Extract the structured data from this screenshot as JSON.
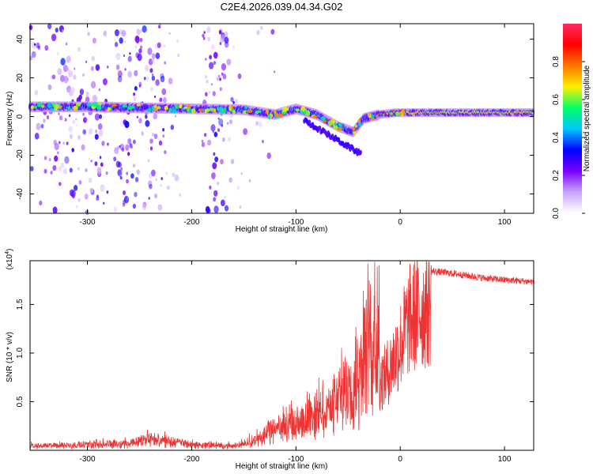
{
  "figure_title": "C2E4.2026.039.04.34.G02",
  "chart_data": [
    {
      "type": "heatmap",
      "name": "spectrogram",
      "xlabel": "Height of straight line (km)",
      "ylabel": "Frequency (Hz)",
      "xlim": [
        -355,
        128
      ],
      "ylim": [
        -50,
        48
      ],
      "xticks": [
        -300,
        -200,
        -100,
        0,
        100
      ],
      "xtick_labels": [
        "-300",
        "-200",
        "-100",
        "0",
        "100"
      ],
      "yticks": [
        -40,
        -20,
        0,
        20,
        40
      ],
      "ytick_labels": [
        "-40",
        "-20",
        "0",
        "20",
        "40"
      ],
      "ridge": {
        "x": [
          -355,
          -300,
          -250,
          -200,
          -150,
          -120,
          -100,
          -80,
          -60,
          -45,
          -35,
          -20,
          -5,
          0,
          20,
          50,
          128
        ],
        "y": [
          5,
          5,
          4.5,
          4,
          3.5,
          1,
          4,
          1,
          -5,
          -8,
          -1,
          1,
          2,
          2,
          2,
          2,
          2
        ]
      },
      "colorbar": {
        "label": "Normalized spectral amplitude",
        "range": [
          0,
          1
        ],
        "ticks": [
          0.0,
          0.2,
          0.4,
          0.6,
          0.8
        ],
        "tick_labels": [
          "0.0",
          "0.2",
          "0.4",
          "0.6",
          "0.8"
        ],
        "colors": [
          "#ffffff",
          "#c9a6ff",
          "#7a00ff",
          "#0000ff",
          "#00c8ff",
          "#00ff66",
          "#ffee00",
          "#ff7700",
          "#ff0000",
          "#ff2a60"
        ]
      }
    },
    {
      "type": "line",
      "name": "snr",
      "xlabel": "Height of straight line (km)",
      "ylabel": "SNR (10 * v/v)",
      "scale_label": "(x10",
      "scale_exp": "4",
      "scale_close": ")",
      "xlim": [
        -355,
        128
      ],
      "ylim": [
        0,
        19500
      ],
      "xticks": [
        -300,
        -200,
        -100,
        0,
        100
      ],
      "xtick_labels": [
        "-300",
        "-200",
        "-100",
        "0",
        "100"
      ],
      "yticks": [
        5000,
        10000,
        15000
      ],
      "ytick_labels": [
        "0.5",
        "1.0",
        "1.5"
      ],
      "color": "#ee3333",
      "envelope": {
        "x": [
          -355,
          -300,
          -260,
          -240,
          -200,
          -160,
          -140,
          -120,
          -100,
          -80,
          -60,
          -45,
          -35,
          -25,
          -15,
          -10,
          -5,
          0,
          5,
          10,
          20,
          30,
          40,
          55,
          80,
          100,
          128
        ],
        "y": [
          300,
          400,
          500,
          800,
          400,
          300,
          700,
          1500,
          2000,
          2500,
          3500,
          5000,
          6500,
          8000,
          9500,
          10500,
          12000,
          13500,
          15500,
          17000,
          18000,
          18600,
          18500,
          18300,
          17900,
          17700,
          17500
        ]
      }
    }
  ]
}
